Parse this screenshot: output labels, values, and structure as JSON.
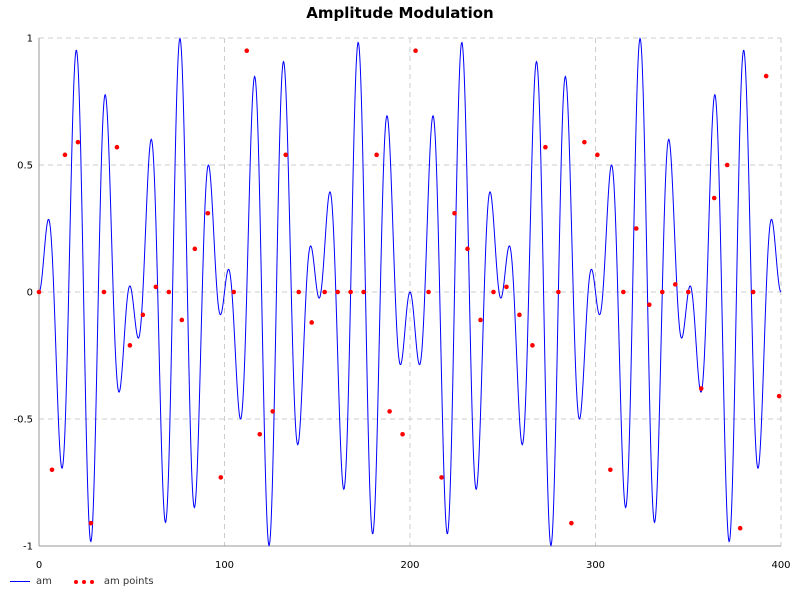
{
  "chart_data": {
    "type": "line",
    "title": "Amplitude Modulation",
    "xlabel": "",
    "ylabel": "",
    "xlim": [
      0,
      400
    ],
    "ylim": [
      -1,
      1
    ],
    "x_ticks": [
      "0",
      "100",
      "200",
      "300",
      "400"
    ],
    "y_ticks": [
      "1",
      "0.5",
      "0",
      "-0.5",
      "-1"
    ],
    "grid": true,
    "legend_position": "bottom-left",
    "carrier_cycles_per_unit": 0.0625,
    "modulation_cycles_per_unit": 0.01,
    "series": [
      {
        "name": "am",
        "style": "line",
        "color": "#0000ff",
        "formula": "y = sin(2π·x/16) · sin(2π·x/100)",
        "x_start": 0,
        "x_end": 400,
        "x_step": 0.25
      },
      {
        "name": "am points",
        "style": "points",
        "color": "#ff0000",
        "x": [
          0,
          7,
          14,
          21,
          28,
          35,
          42,
          49,
          56,
          63,
          70,
          77,
          84,
          91,
          98,
          105,
          112,
          119,
          126,
          133,
          140,
          147,
          154,
          161,
          168,
          175,
          182,
          189,
          196,
          203,
          210,
          217,
          224,
          231,
          238,
          245,
          252,
          259,
          266,
          273,
          280,
          287,
          294,
          301,
          308,
          315,
          322,
          329,
          336,
          343,
          350,
          357,
          364,
          371,
          378,
          385,
          392,
          399
        ],
        "y": [
          0.0,
          -0.7,
          0.54,
          0.59,
          -0.91,
          0.0,
          0.57,
          -0.21,
          -0.09,
          0.02,
          0.0,
          -0.11,
          0.17,
          0.31,
          -0.73,
          0.0,
          0.95,
          -0.56,
          -0.47,
          0.54,
          0.0,
          -0.12,
          0.0,
          0.0,
          0.0,
          0.0,
          0.54,
          -0.47,
          -0.56,
          0.95,
          0.0,
          -0.73,
          0.31,
          0.17,
          -0.11,
          0.0,
          0.02,
          -0.09,
          -0.21,
          0.57,
          0.0,
          -0.91,
          0.59,
          0.54,
          -0.7,
          0.0,
          0.25,
          -0.05,
          0.0,
          0.03,
          0.0,
          -0.38,
          0.37,
          0.5,
          -0.93,
          0.0,
          0.85,
          -0.41
        ]
      }
    ]
  },
  "legend": {
    "line_label": "am",
    "points_label": "am points"
  }
}
